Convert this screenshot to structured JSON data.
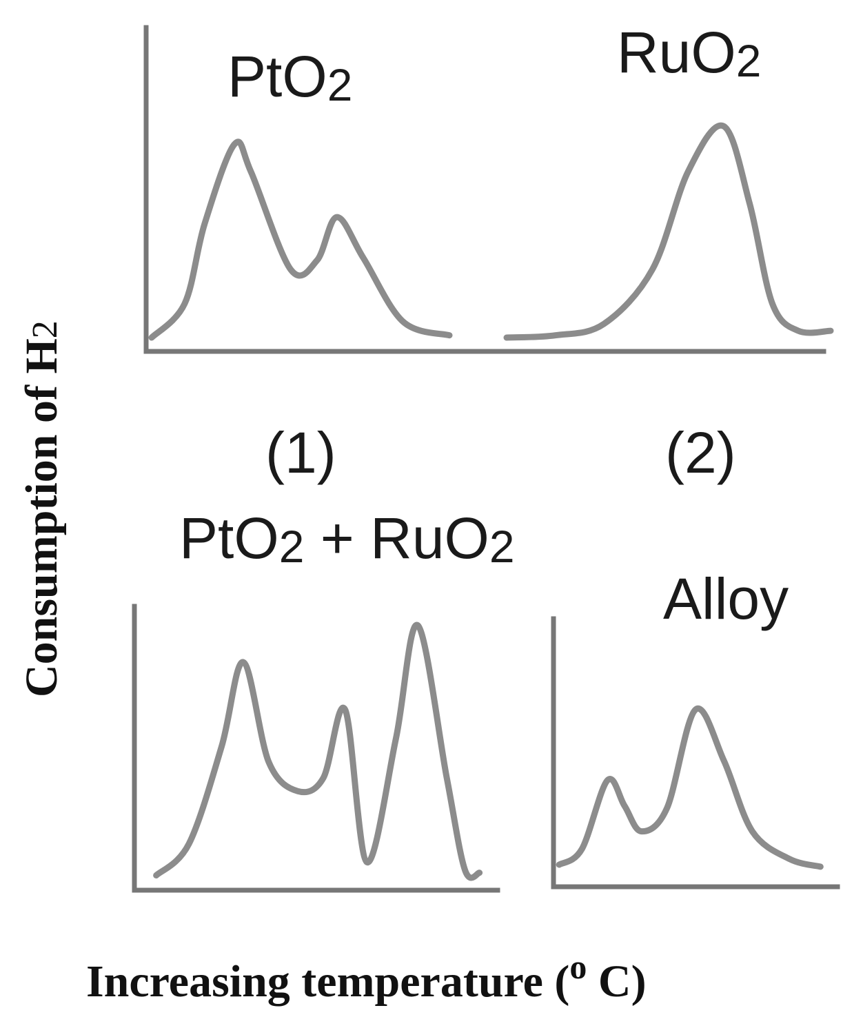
{
  "figure": {
    "xlabel": "Increasing temperature (",
    "xlabel_unit_sup": "o",
    "xlabel_unit_end": " C)",
    "ylabel_main": "Consumption of H",
    "ylabel_sub": "2"
  },
  "panels": [
    {
      "title_main": "PtO",
      "title_sub": "2",
      "number": "(1)"
    },
    {
      "title_main": "RuO",
      "title_sub": "2",
      "number": "(2)"
    },
    {
      "title_main": "PtO",
      "title_sub": "2",
      "title_mid": " + RuO",
      "title_sub2": "2"
    },
    {
      "title_main": "Alloy"
    }
  ],
  "chart_data": [
    {
      "type": "line",
      "title": "PtO2",
      "xlabel": "Increasing temperature (o C)",
      "ylabel": "Consumption of H2",
      "xlim": [
        0,
        10
      ],
      "ylim": [
        0,
        10
      ],
      "series": [
        {
          "x": [
            0,
            1,
            1.6,
            2.5,
            3,
            4.2,
            5,
            5.6,
            6.4,
            7.6,
            9
          ],
          "y": [
            0,
            1.5,
            5.0,
            8.5,
            7.3,
            3.0,
            3.4,
            5.3,
            3.5,
            0.7,
            0.1
          ]
        }
      ]
    },
    {
      "type": "line",
      "title": "RuO2",
      "xlabel": "Increasing temperature (o C)",
      "ylabel": "Consumption of H2",
      "xlim": [
        0,
        10
      ],
      "ylim": [
        0,
        10
      ],
      "series": [
        {
          "x": [
            0,
            1.5,
            3,
            4.5,
            5.6,
            6.7,
            7.5,
            8.2,
            9,
            10
          ],
          "y": [
            0,
            0.1,
            0.6,
            3.0,
            7.3,
            9.3,
            5.9,
            1.5,
            0.3,
            0.3
          ]
        }
      ]
    },
    {
      "type": "line",
      "title": "PtO2 + RuO2",
      "xlabel": "Increasing temperature (o C)",
      "ylabel": "Consumption of H2",
      "xlim": [
        0,
        10
      ],
      "ylim": [
        0,
        10
      ],
      "series": [
        {
          "x": [
            0.6,
            1.5,
            2.4,
            3.0,
            3.7,
            4.5,
            5.2,
            5.8,
            6.4,
            7.2,
            7.8,
            8.6,
            9.1,
            9.5
          ],
          "y": [
            0.3,
            1.5,
            5.2,
            8.4,
            4.6,
            3.5,
            4.0,
            6.6,
            0.8,
            5.5,
            9.8,
            4.0,
            0.5,
            0.4
          ]
        }
      ]
    },
    {
      "type": "line",
      "title": "Alloy",
      "xlabel": "Increasing temperature (o C)",
      "ylabel": "Consumption of H2",
      "xlim": [
        0,
        10
      ],
      "ylim": [
        0,
        10
      ],
      "series": [
        {
          "x": [
            0.2,
            1.0,
            1.9,
            2.5,
            3.1,
            4.0,
            5.0,
            6.0,
            7.0,
            8.3,
            9.4
          ],
          "y": [
            0.7,
            1.5,
            5.0,
            3.7,
            2.4,
            3.6,
            8.6,
            6.0,
            2.4,
            1.0,
            0.6
          ]
        }
      ]
    }
  ]
}
